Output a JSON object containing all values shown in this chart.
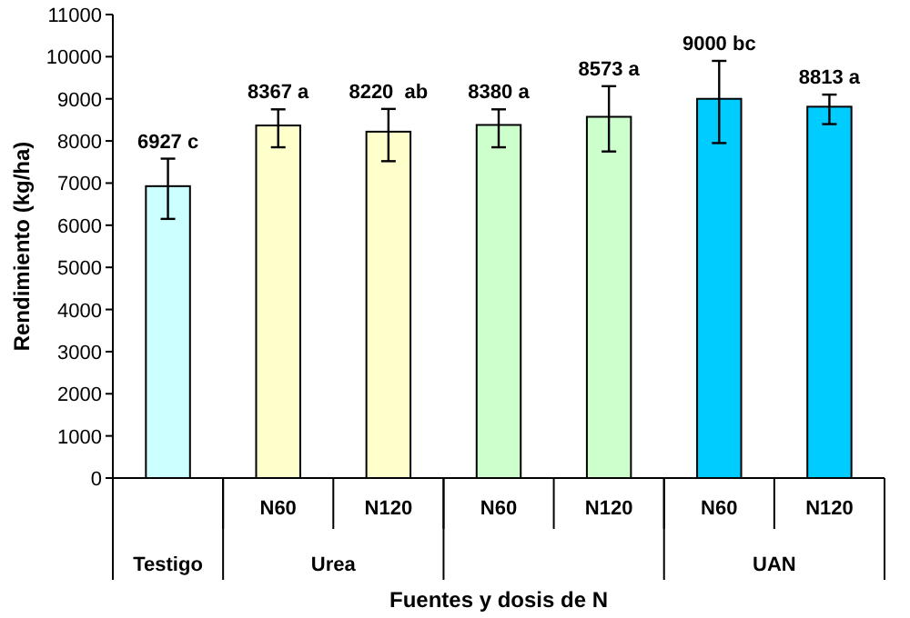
{
  "chart_data": {
    "type": "bar",
    "xlabel": "Fuentes y dosis de N",
    "ylabel": "Rendimiento (kg/ha)",
    "categories": [
      null,
      "N60",
      "N120",
      "N60",
      "N120",
      "N60",
      "N120"
    ],
    "values": [
      6927,
      8367,
      8220,
      8380,
      8573,
      9000,
      8813
    ],
    "colors": [
      "#ccffff",
      "#ffffcc",
      "#ffffcc",
      "#ccffcc",
      "#ccffcc",
      "#00ccff",
      "#00ccff"
    ],
    "errors": [
      [
        6150,
        7580
      ],
      [
        7850,
        8750
      ],
      [
        7520,
        8760
      ],
      [
        7850,
        8750
      ],
      [
        7750,
        9300
      ],
      [
        7950,
        9900
      ],
      [
        8400,
        9100
      ]
    ],
    "value_labels": [
      "6927 c",
      "8367 a",
      "8220  ab",
      "8380 a",
      "8573 a",
      "9000 bc",
      "8813 a"
    ],
    "annotations": [
      "Testigo",
      "Urea",
      "UAN"
    ],
    "ylim": [
      0,
      11000
    ],
    "yticks": [
      0,
      1000,
      2000,
      3000,
      4000,
      5000,
      6000,
      7000,
      8000,
      9000,
      10000,
      11000
    ],
    "grid": false
  }
}
